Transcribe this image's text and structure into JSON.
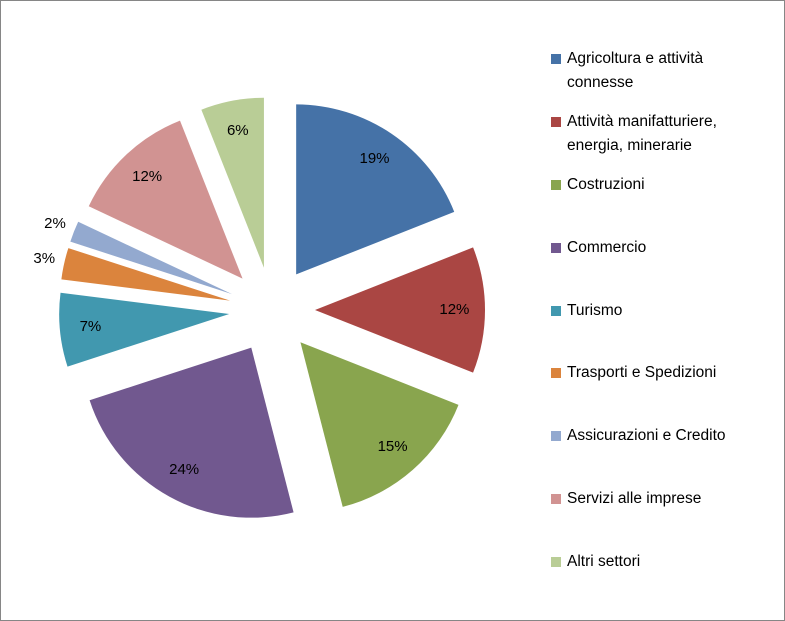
{
  "chart_data": {
    "type": "pie",
    "exploded": true,
    "legend_position": "right",
    "categories": [
      "Agricoltura e attività connesse",
      "Attività manifatturiere, energia, minerarie",
      "Costruzioni",
      "Commercio",
      "Turismo",
      "Trasporti e Spedizioni",
      "Assicurazioni e Credito",
      "Servizi alle imprese",
      "Altri settori"
    ],
    "legend_lines": [
      [
        "Agricoltura e attività",
        "connesse"
      ],
      [
        "Attività manifatturiere,",
        "energia, minerarie"
      ],
      [
        "Costruzioni"
      ],
      [
        "Commercio"
      ],
      [
        "Turismo"
      ],
      [
        "Trasporti e Spedizioni"
      ],
      [
        "Assicurazioni e Credito"
      ],
      [
        "Servizi alle imprese"
      ],
      [
        "Altri settori"
      ]
    ],
    "values": [
      19,
      12,
      15,
      24,
      7,
      3,
      2,
      12,
      6
    ],
    "data_labels": [
      "19%",
      "12%",
      "15%",
      "24%",
      "7%",
      "3%",
      "2%",
      "12%",
      "6%"
    ],
    "colors": [
      "#4572A7",
      "#AA4643",
      "#89A54E",
      "#71588F",
      "#4198AF",
      "#DB843D",
      "#93A9CF",
      "#D19392",
      "#B9CD96"
    ]
  }
}
